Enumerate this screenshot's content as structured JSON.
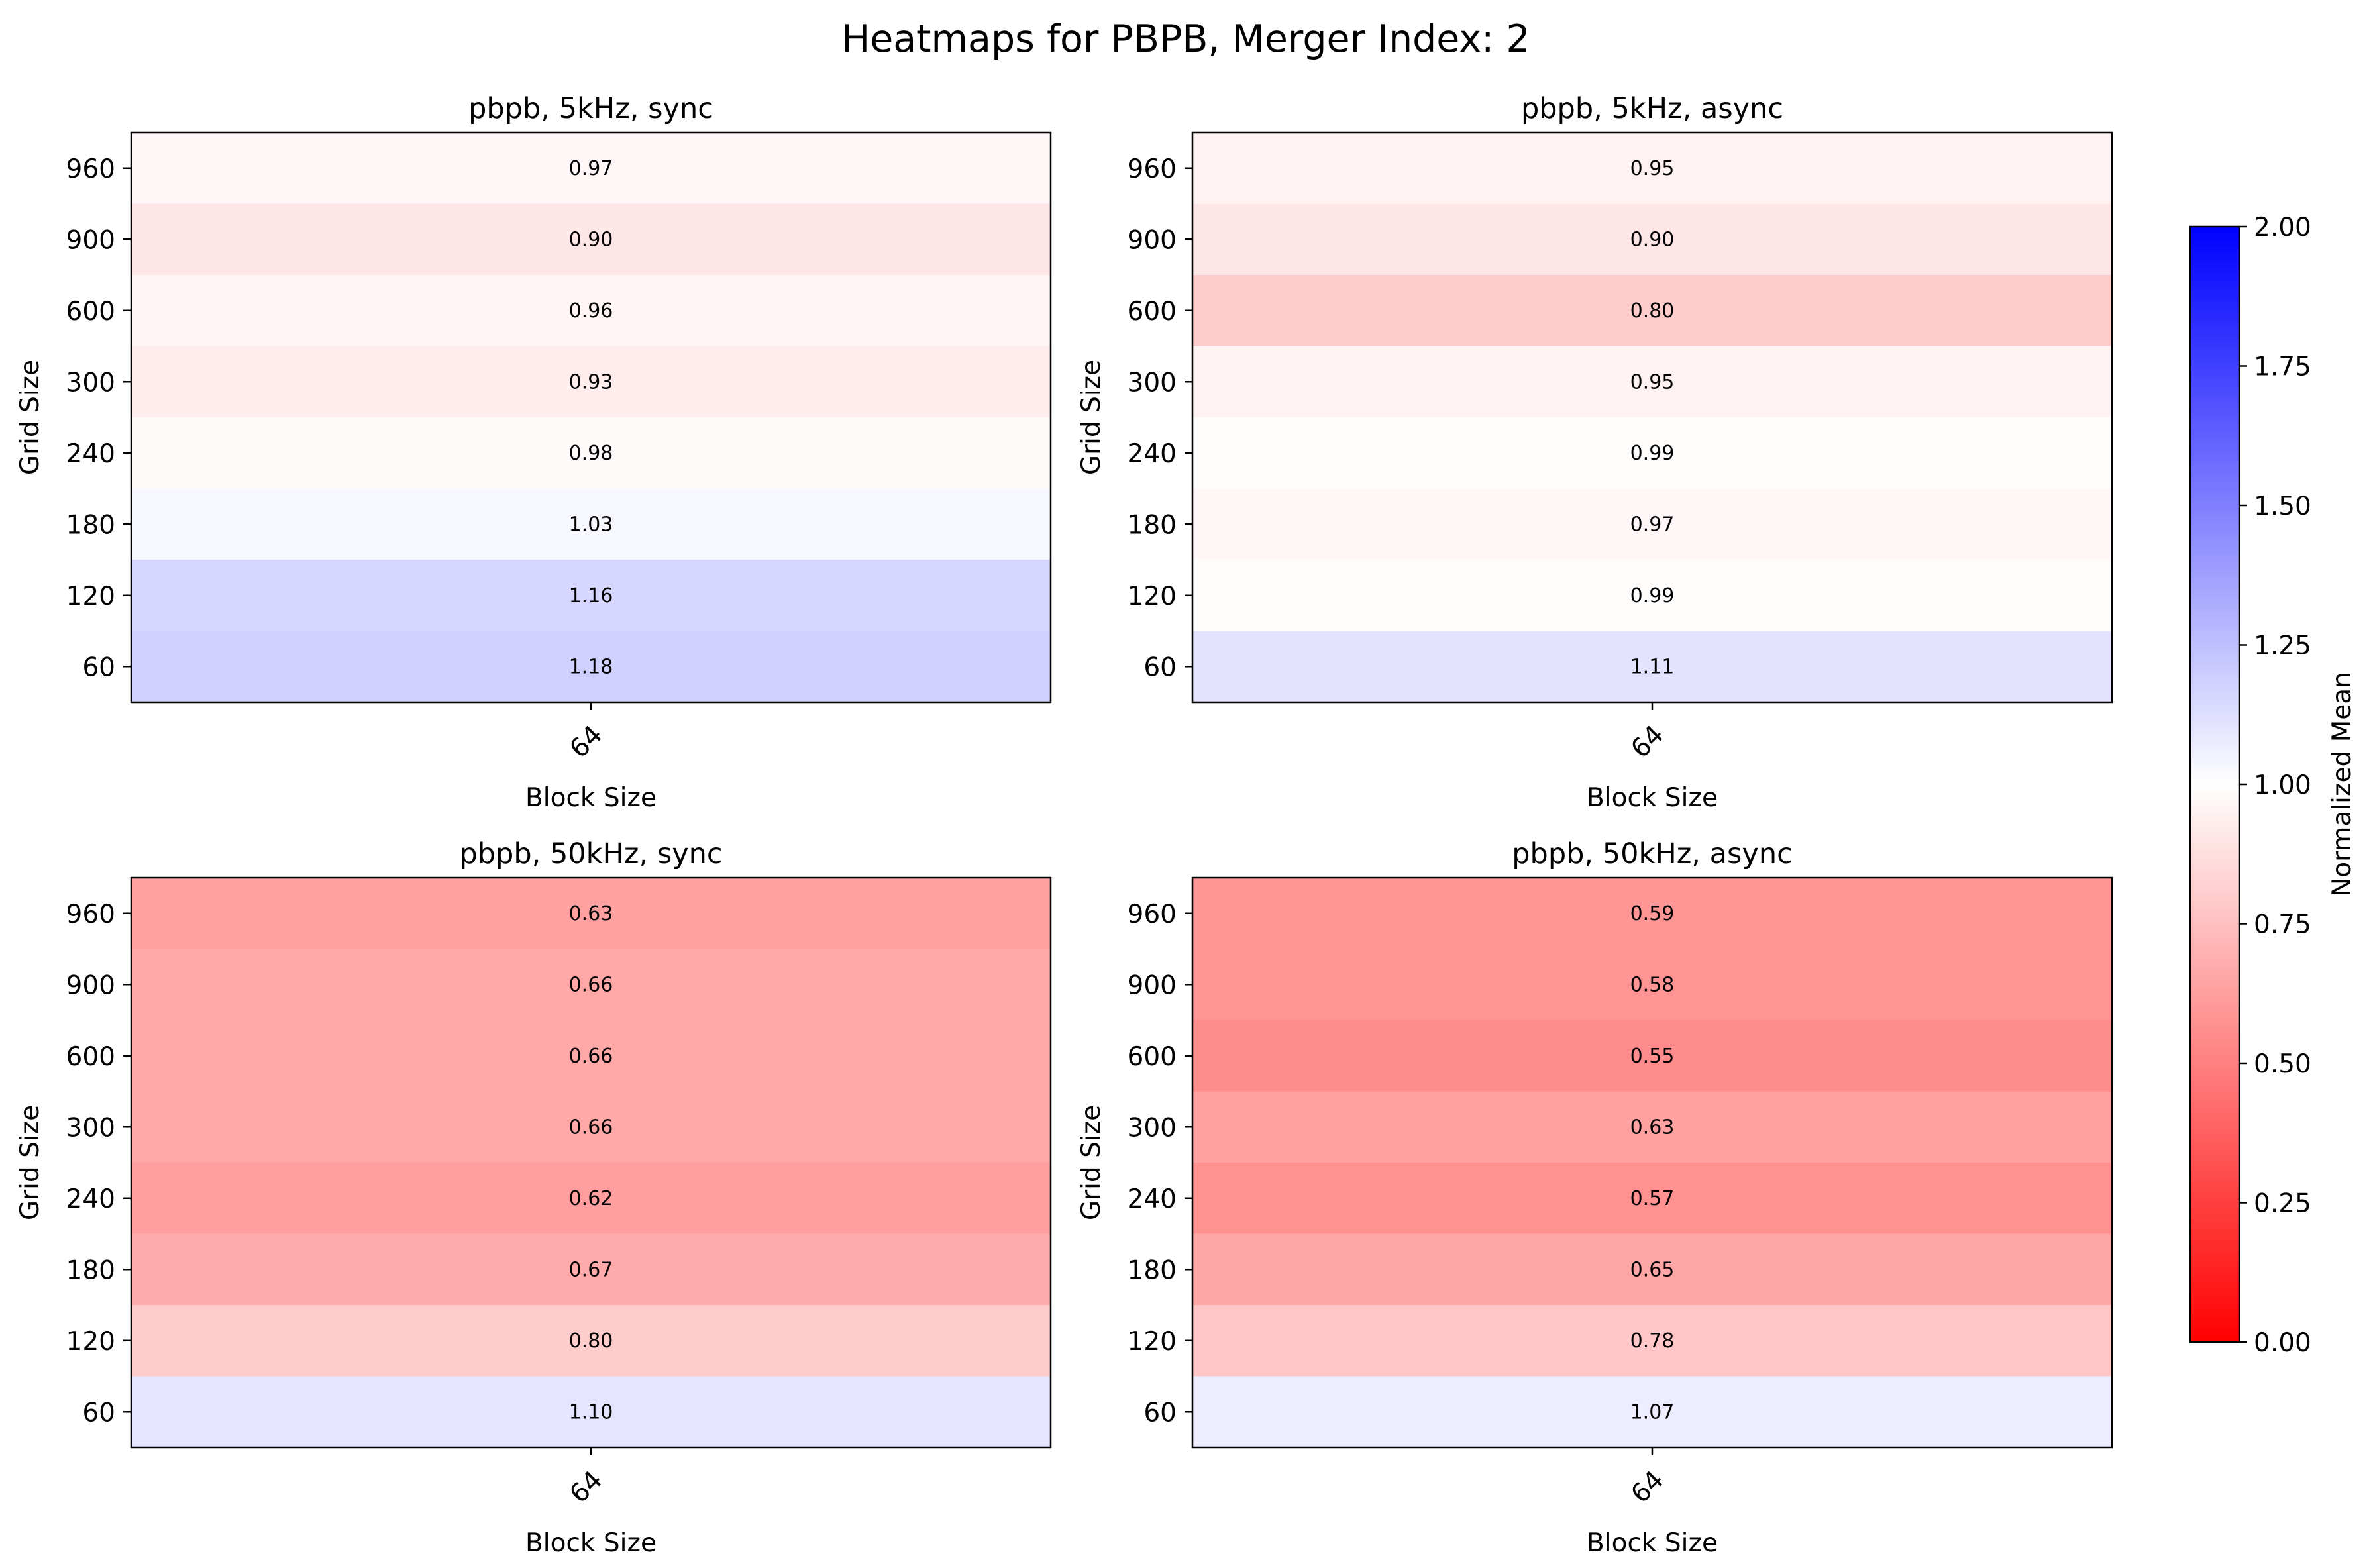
{
  "chart_data": {
    "type": "heatmap",
    "title": "Heatmaps for PBPB, Merger Index: 2",
    "grid_sizes": [
      "960",
      "900",
      "600",
      "300",
      "240",
      "180",
      "120",
      "60"
    ],
    "block_sizes": [
      "64"
    ],
    "xlabel": "Block Size",
    "ylabel": "Grid Size",
    "panels": [
      {
        "title": "pbpb, 5kHz, sync",
        "values": [
          0.97,
          0.9,
          0.96,
          0.93,
          0.98,
          1.03,
          1.16,
          1.18
        ],
        "labels": [
          "0.97",
          "0.90",
          "0.96",
          "0.93",
          "0.98",
          "1.03",
          "1.16",
          "1.18"
        ]
      },
      {
        "title": "pbpb, 5kHz, async",
        "values": [
          0.95,
          0.9,
          0.8,
          0.95,
          0.99,
          0.97,
          0.99,
          1.11
        ],
        "labels": [
          "0.95",
          "0.90",
          "0.80",
          "0.95",
          "0.99",
          "0.97",
          "0.99",
          "1.11"
        ]
      },
      {
        "title": "pbpb, 50kHz, sync",
        "values": [
          0.63,
          0.66,
          0.66,
          0.66,
          0.62,
          0.67,
          0.8,
          1.1
        ],
        "labels": [
          "0.63",
          "0.66",
          "0.66",
          "0.66",
          "0.62",
          "0.67",
          "0.80",
          "1.10"
        ]
      },
      {
        "title": "pbpb, 50kHz, async",
        "values": [
          0.59,
          0.58,
          0.55,
          0.63,
          0.57,
          0.65,
          0.78,
          1.07
        ],
        "labels": [
          "0.59",
          "0.58",
          "0.55",
          "0.63",
          "0.57",
          "0.65",
          "0.78",
          "1.07"
        ]
      }
    ],
    "colorbar": {
      "label": "Normalized Mean",
      "range": [
        0,
        2
      ],
      "ticks": [
        "0.00",
        "0.25",
        "0.50",
        "0.75",
        "1.00",
        "1.25",
        "1.50",
        "1.75",
        "2.00"
      ],
      "colormap": "bwr_r",
      "low_color": "#ff0000",
      "mid_color": "#ffffff",
      "high_color": "#0000ff"
    }
  }
}
